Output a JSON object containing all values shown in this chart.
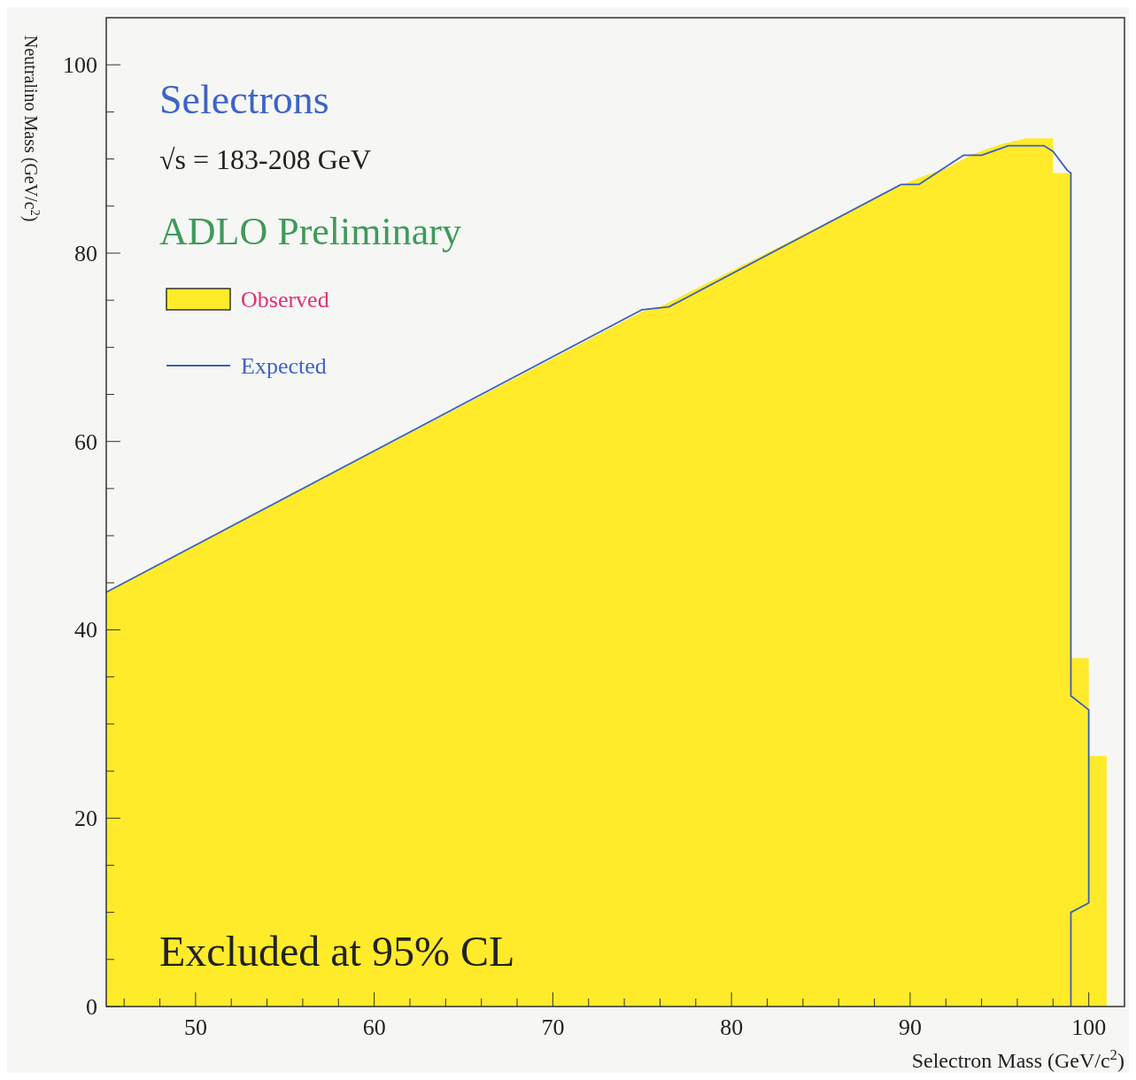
{
  "chart_data": {
    "type": "area",
    "title": "Selectrons",
    "xlabel": "Selectron Mass (GeV/c$^{2}$)",
    "ylabel": "Neutralino Mass (GeV/c$^{2}$)",
    "annotations": [
      "√s = 183-208 GeV",
      "ADLO Preliminary",
      "Excluded at 95% CL"
    ],
    "xlim": [
      45,
      102
    ],
    "ylim": [
      0,
      105
    ],
    "xticks": [
      {
        "value": 46,
        "label": null
      },
      {
        "value": 48,
        "label": null
      },
      50,
      {
        "value": 52,
        "label": null
      },
      {
        "value": 54,
        "label": null
      },
      {
        "value": 56,
        "label": null
      },
      {
        "value": 58,
        "label": null
      },
      60,
      {
        "value": 62,
        "label": null
      },
      {
        "value": 64,
        "label": null
      },
      {
        "value": 66,
        "label": null
      },
      {
        "value": 68,
        "label": null
      },
      70,
      {
        "value": 72,
        "label": null
      },
      {
        "value": 74,
        "label": null
      },
      {
        "value": 76,
        "label": null
      },
      {
        "value": 78,
        "label": null
      },
      80,
      {
        "value": 82,
        "label": null
      },
      {
        "value": 84,
        "label": null
      },
      {
        "value": 86,
        "label": null
      },
      {
        "value": 88,
        "label": null
      },
      90,
      {
        "value": 92,
        "label": null
      },
      {
        "value": 94,
        "label": null
      },
      {
        "value": 96,
        "label": null
      },
      {
        "value": 98,
        "label": null
      },
      100
    ],
    "yticks": [
      0,
      {
        "value": 5,
        "label": null
      },
      {
        "value": 10,
        "label": null
      },
      {
        "value": 15,
        "label": null
      },
      20,
      {
        "value": 25,
        "label": null
      },
      {
        "value": 30,
        "label": null
      },
      {
        "value": 35,
        "label": null
      },
      40,
      {
        "value": 45,
        "label": null
      },
      {
        "value": 50,
        "label": null
      },
      {
        "value": 55,
        "label": null
      },
      60,
      {
        "value": 65,
        "label": null
      },
      {
        "value": 70,
        "label": null
      },
      {
        "value": 75,
        "label": null
      },
      80,
      {
        "value": 85,
        "label": null
      },
      {
        "value": 90,
        "label": null
      },
      {
        "value": 95,
        "label": null
      },
      100
    ],
    "legend": "top left",
    "series": [
      {
        "name": "Observed",
        "color": "#ffeb2a",
        "x": [
          45,
          75,
          76,
          89.5,
          90.5,
          92,
          93.5,
          95,
          96.5,
          98,
          98,
          99,
          99,
          100,
          100,
          101,
          101
        ],
        "values": [
          44,
          73.8,
          74.3,
          87.2,
          88,
          89,
          90.5,
          91.5,
          92.2,
          92.2,
          88.5,
          88.5,
          37,
          37,
          26.6,
          26.6,
          0
        ]
      },
      {
        "name": "Expected",
        "type": "line",
        "color": "#3a5fbf",
        "x": [
          45,
          75,
          76.5,
          89.5,
          90.5,
          93,
          94,
          95.5,
          97.5,
          98,
          98.8,
          99,
          99,
          100,
          100,
          99,
          99
        ],
        "values": [
          44,
          74,
          74.3,
          87.3,
          87.3,
          90.4,
          90.4,
          91.4,
          91.4,
          90.8,
          88.8,
          88.5,
          33,
          31.5,
          11,
          10,
          0
        ]
      }
    ]
  }
}
